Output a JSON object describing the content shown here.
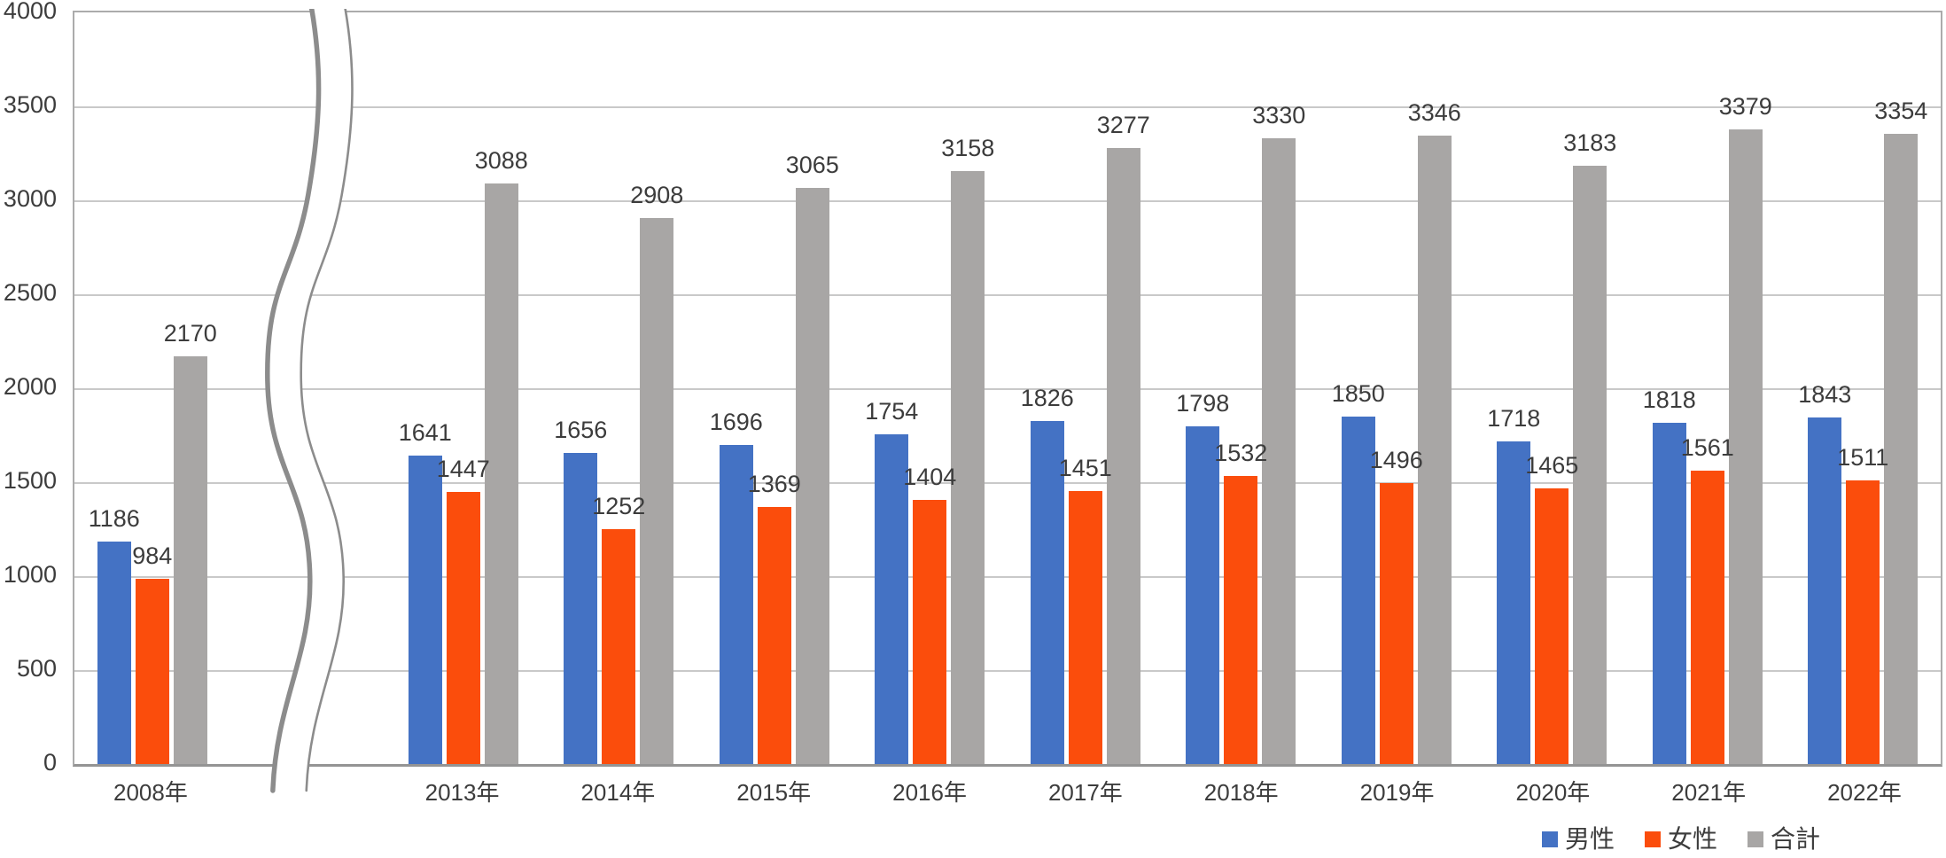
{
  "chart_data": {
    "type": "bar",
    "title": "",
    "xlabel": "",
    "ylabel": "",
    "categories": [
      "2008年",
      "2013年",
      "2014年",
      "2015年",
      "2016年",
      "2017年",
      "2018年",
      "2019年",
      "2020年",
      "2021年",
      "2022年"
    ],
    "series": [
      {
        "name": "男性",
        "color": "#4472C4",
        "values": [
          1186,
          1641,
          1656,
          1696,
          1754,
          1826,
          1798,
          1850,
          1718,
          1818,
          1843
        ]
      },
      {
        "name": "女性",
        "color": "#FB4D0C",
        "values": [
          984,
          1447,
          1252,
          1369,
          1404,
          1451,
          1532,
          1496,
          1465,
          1561,
          1511
        ]
      },
      {
        "name": "合計",
        "color": "#A8A6A5",
        "values": [
          2170,
          3088,
          2908,
          3065,
          3158,
          3277,
          3330,
          3346,
          3183,
          3379,
          3354
        ]
      }
    ],
    "ylim": [
      0,
      4000
    ],
    "ytick_interval": 500,
    "yticks": [
      "0",
      "500",
      "1000",
      "1500",
      "2000",
      "2500",
      "3000",
      "3500",
      "4000"
    ],
    "grid": "horizontal",
    "data_labels": true,
    "legend_position": "bottom-right",
    "axis_break": {
      "between": [
        "2008年",
        "2013年"
      ],
      "style": "wavy-vertical-ribbon"
    }
  },
  "colors": {
    "male": "#4472C4",
    "female": "#FB4D0C",
    "total": "#A8A6A5",
    "text": "#3C3C3C",
    "gridline": "#C9C9C9",
    "plot_border": "#ABABAB",
    "axis_line": "#949494",
    "break_line": "#8C8C8C"
  },
  "legend": {
    "items": [
      {
        "label": "男性",
        "color": "#4472C4"
      },
      {
        "label": "女性",
        "color": "#FB4D0C"
      },
      {
        "label": "合計",
        "color": "#A8A6A5"
      }
    ]
  }
}
